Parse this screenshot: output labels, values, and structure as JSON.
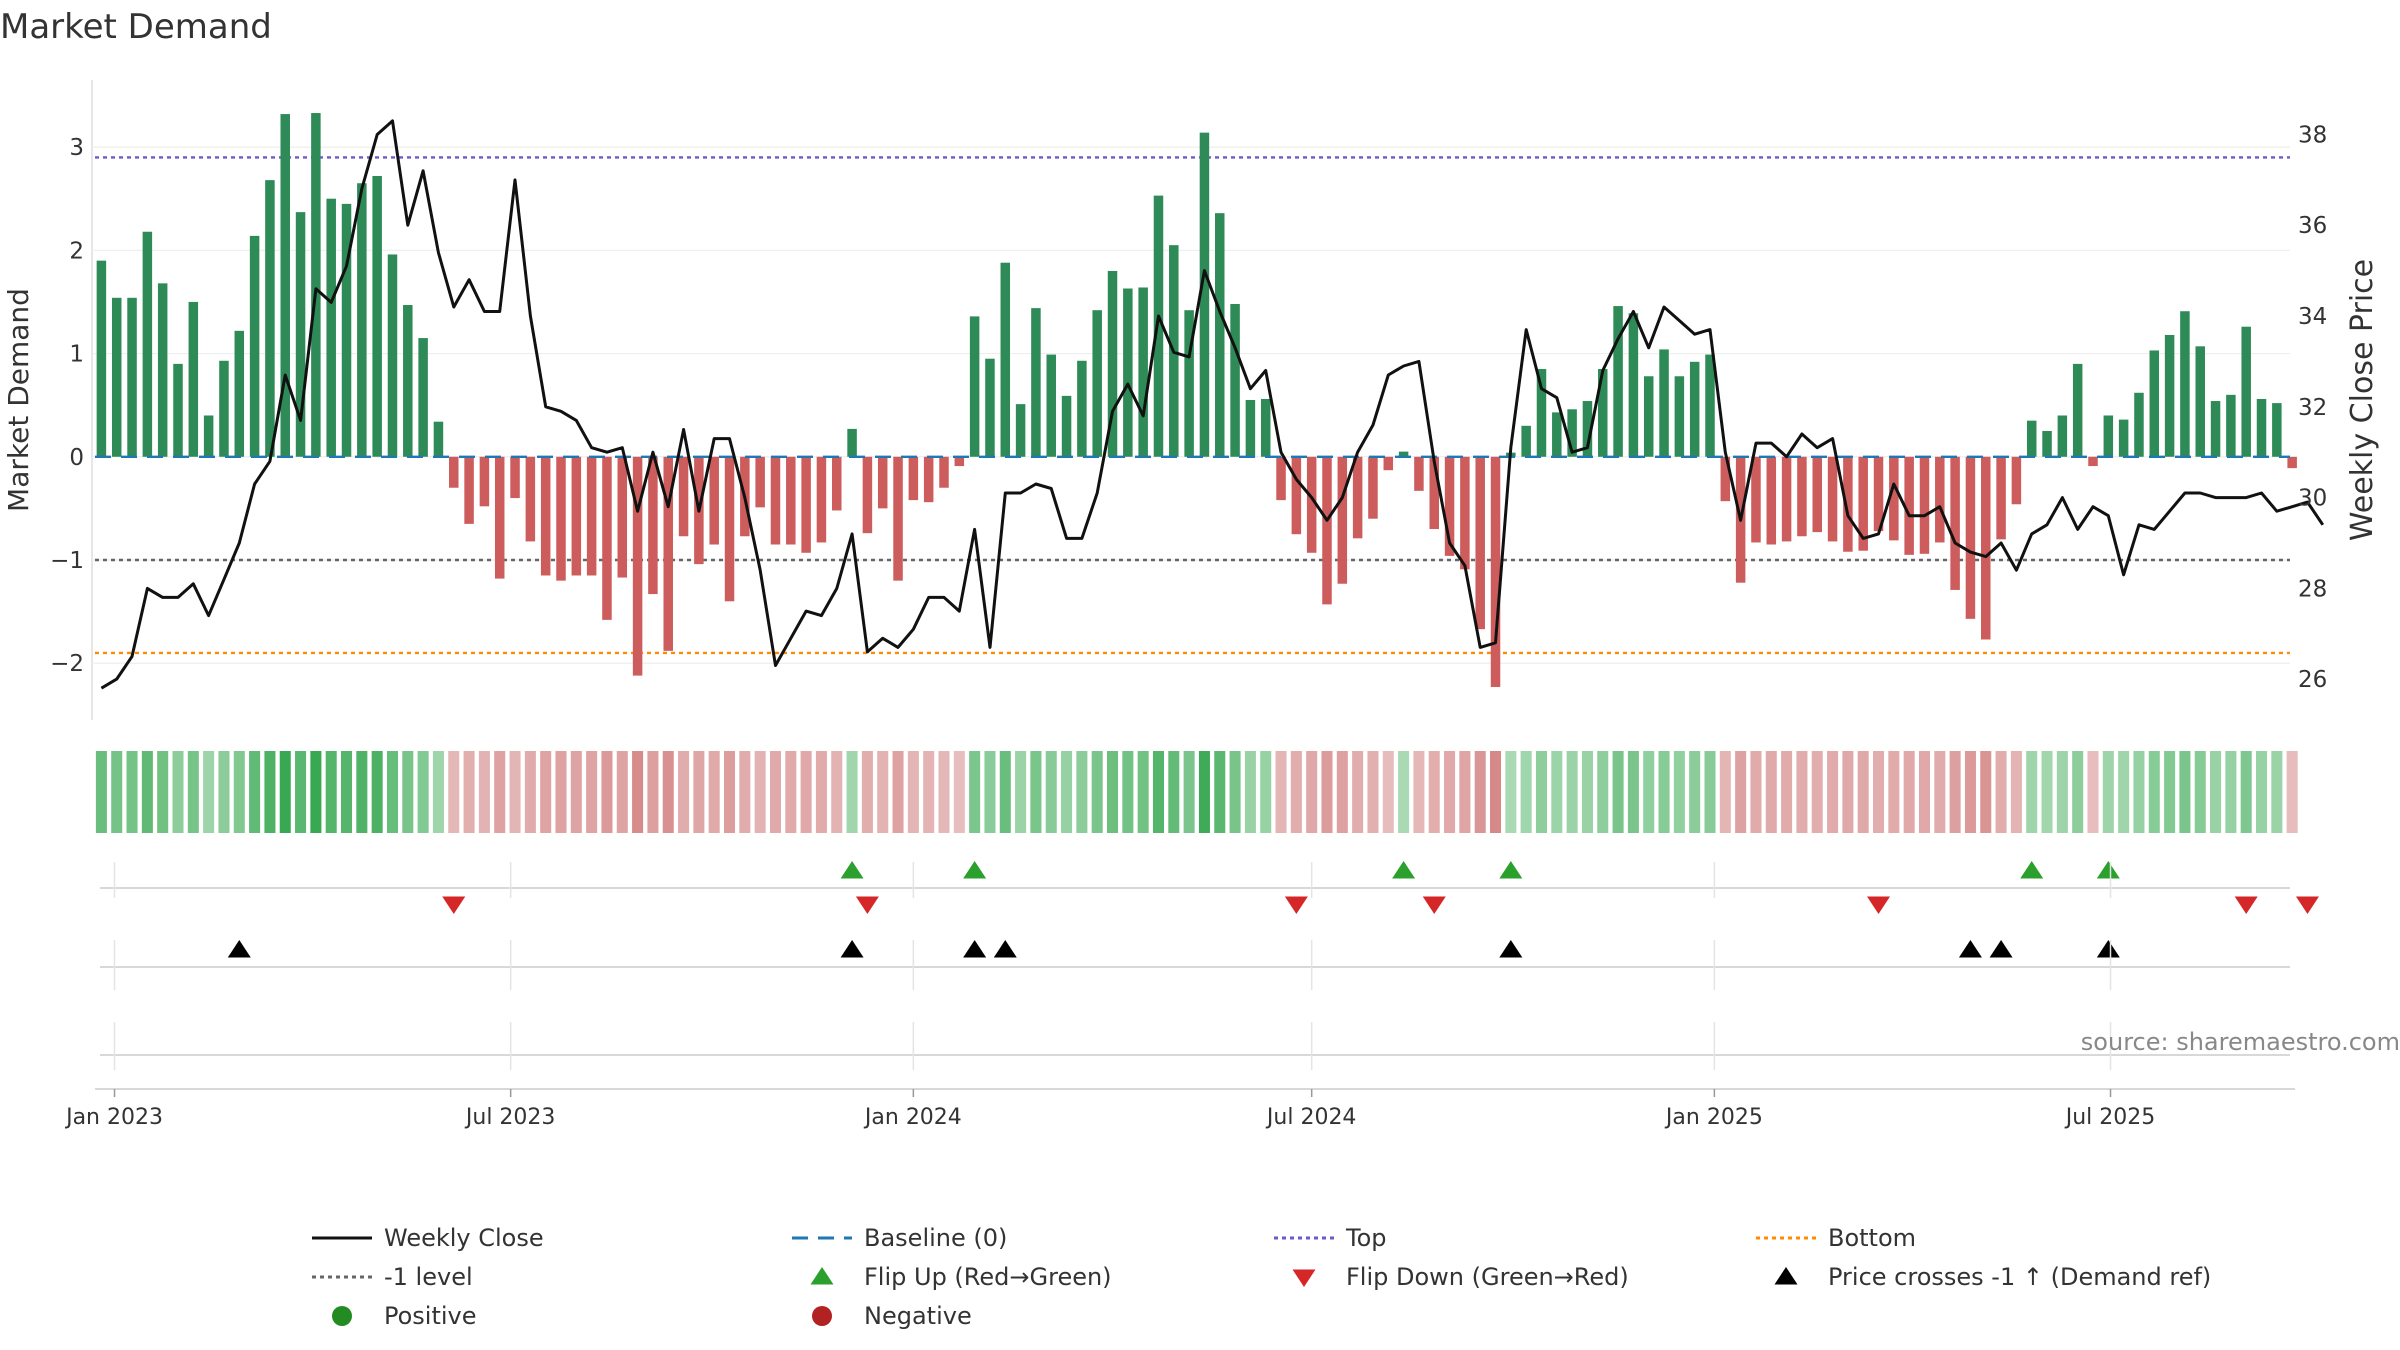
{
  "chart_data": {
    "type": "bar",
    "title": "Market Demand",
    "ylabel_left": "Market Demand",
    "ylabel_right": "Weekly Close Price",
    "source": "source: sharemaestro.com",
    "x_ticks": [
      "Jan 2023",
      "Jul 2023",
      "Jan 2024",
      "Jul 2024",
      "Jan 2025",
      "Jul 2025"
    ],
    "y_left_ticks": [
      -2,
      -1,
      0,
      1,
      2,
      3
    ],
    "y_left_labels": [
      "−2",
      "−1",
      "0",
      "1",
      "2",
      "3"
    ],
    "y_right_ticks": [
      26,
      28,
      30,
      32,
      34,
      36,
      38
    ],
    "y_left_range": [
      -2.55,
      3.65
    ],
    "y_right_range": [
      25.1,
      39.2
    ],
    "levels": {
      "top": 2.9,
      "minus_one": -1,
      "bottom": -1.9
    },
    "x_start": "2022-12-26",
    "x_end": "2025-09-01",
    "demand": [
      1.9,
      1.54,
      1.54,
      2.18,
      1.68,
      0.9,
      1.5,
      0.4,
      0.93,
      1.22,
      2.14,
      2.68,
      3.32,
      2.37,
      3.33,
      2.5,
      2.45,
      2.65,
      2.72,
      1.96,
      1.47,
      1.15,
      0.34,
      -0.3,
      -0.65,
      -0.48,
      -1.18,
      -0.4,
      -0.82,
      -1.15,
      -1.2,
      -1.15,
      -1.15,
      -1.58,
      -1.17,
      -2.12,
      -1.33,
      -1.88,
      -0.77,
      -1.04,
      -0.85,
      -1.4,
      -0.77,
      -0.49,
      -0.85,
      -0.85,
      -0.93,
      -0.83,
      -0.52,
      0.27,
      -0.74,
      -0.5,
      -1.2,
      -0.42,
      -0.44,
      -0.3,
      -0.09,
      1.36,
      0.95,
      1.88,
      0.51,
      1.44,
      0.99,
      0.59,
      0.93,
      1.42,
      1.8,
      1.63,
      1.64,
      2.53,
      2.05,
      1.42,
      3.14,
      2.36,
      1.48,
      0.55,
      0.56,
      -0.42,
      -0.75,
      -0.93,
      -1.43,
      -1.23,
      -0.79,
      -0.6,
      -0.13,
      0.05,
      -0.33,
      -0.7,
      -0.96,
      -1.09,
      -1.67,
      -2.23,
      0.04,
      0.3,
      0.85,
      0.43,
      0.46,
      0.54,
      0.85,
      1.46,
      1.39,
      0.78,
      1.04,
      0.78,
      0.92,
      0.99,
      -0.43,
      -1.22,
      -0.83,
      -0.85,
      -0.82,
      -0.77,
      -0.73,
      -0.82,
      -0.92,
      -0.91,
      -0.72,
      -0.81,
      -0.95,
      -0.94,
      -0.83,
      -1.29,
      -1.57,
      -1.77,
      -0.8,
      -0.46,
      0.35,
      0.25,
      0.4,
      0.9,
      -0.09,
      0.4,
      0.36,
      0.62,
      1.03,
      1.18,
      1.41,
      1.07,
      0.54,
      0.6,
      1.26,
      0.56,
      0.52,
      -0.11
    ],
    "close": [
      25.8,
      26.0,
      26.5,
      28.0,
      27.8,
      27.8,
      28.1,
      27.4,
      28.2,
      29.0,
      30.3,
      30.8,
      32.7,
      31.7,
      34.6,
      34.3,
      35.1,
      36.8,
      38.0,
      38.3,
      36.0,
      37.2,
      35.4,
      34.2,
      34.8,
      34.1,
      34.1,
      37.0,
      34.0,
      32.0,
      31.9,
      31.7,
      31.1,
      31.0,
      31.1,
      29.7,
      31.0,
      29.8,
      31.5,
      29.7,
      31.3,
      31.3,
      30.0,
      28.4,
      26.3,
      26.9,
      27.5,
      27.4,
      28.0,
      29.2,
      26.6,
      26.9,
      26.7,
      27.1,
      27.8,
      27.8,
      27.5,
      29.3,
      26.7,
      30.1,
      30.1,
      30.3,
      30.2,
      29.1,
      29.1,
      30.1,
      31.9,
      32.5,
      31.8,
      34.0,
      33.2,
      33.1,
      35.0,
      34.1,
      33.3,
      32.4,
      32.8,
      31.0,
      30.4,
      30.0,
      29.5,
      30.0,
      31.0,
      31.6,
      32.7,
      32.9,
      33.0,
      30.8,
      29.0,
      28.5,
      26.7,
      26.8,
      31.1,
      33.7,
      32.4,
      32.2,
      31.0,
      31.1,
      32.8,
      33.5,
      34.1,
      33.3,
      34.2,
      33.9,
      33.6,
      33.7,
      31.0,
      29.5,
      31.2,
      31.2,
      30.9,
      31.4,
      31.1,
      31.3,
      29.6,
      29.1,
      29.2,
      30.3,
      29.6,
      29.6,
      29.8,
      29.0,
      28.8,
      28.7,
      29.0,
      28.4,
      29.2,
      29.4,
      30.0,
      29.3,
      29.8,
      29.6,
      28.3,
      29.4,
      29.3,
      29.7,
      30.1,
      30.1,
      30.0,
      30.0,
      30.0,
      30.1,
      29.7,
      29.8,
      29.9,
      29.4
    ],
    "flip_up": [
      49,
      57,
      85,
      92,
      126,
      131
    ],
    "flip_down": [
      23,
      50,
      78,
      87,
      116,
      140,
      144
    ],
    "price_cross": [
      9,
      49,
      57,
      59,
      92,
      122,
      124,
      131
    ],
    "colors": {
      "positive_bar": "#2e8b57",
      "negative_bar": "#cd5c5c",
      "close_line": "#111111",
      "baseline": "#1f77b4",
      "top": "#6a5acd",
      "minus_one": "#666666",
      "bottom": "#ff8c00",
      "flip_up": "#2ca02c",
      "flip_down": "#d62728",
      "cross": "#000000",
      "positive_dot": "#228b22",
      "negative_dot": "#b22222"
    },
    "legend_position": "bottom",
    "legend": [
      {
        "label": "Weekly Close",
        "kind": "line-solid",
        "color": "#111111"
      },
      {
        "label": "Baseline (0)",
        "kind": "line-dash",
        "color": "#1f77b4"
      },
      {
        "label": "Top",
        "kind": "line-dot",
        "color": "#6a5acd"
      },
      {
        "label": "Bottom",
        "kind": "line-dot",
        "color": "#ff8c00"
      },
      {
        "label": "-1 level",
        "kind": "line-dot",
        "color": "#666666"
      },
      {
        "label": "Flip Up (Red→Green)",
        "kind": "tri-up",
        "color": "#2ca02c"
      },
      {
        "label": "Flip Down (Green→Red)",
        "kind": "tri-down",
        "color": "#d62728"
      },
      {
        "label": "Price crosses -1 ↑ (Demand ref)",
        "kind": "tri-up",
        "color": "#000000"
      },
      {
        "label": "Positive",
        "kind": "dot",
        "color": "#228b22"
      },
      {
        "label": "Negative",
        "kind": "dot",
        "color": "#b22222"
      }
    ]
  }
}
